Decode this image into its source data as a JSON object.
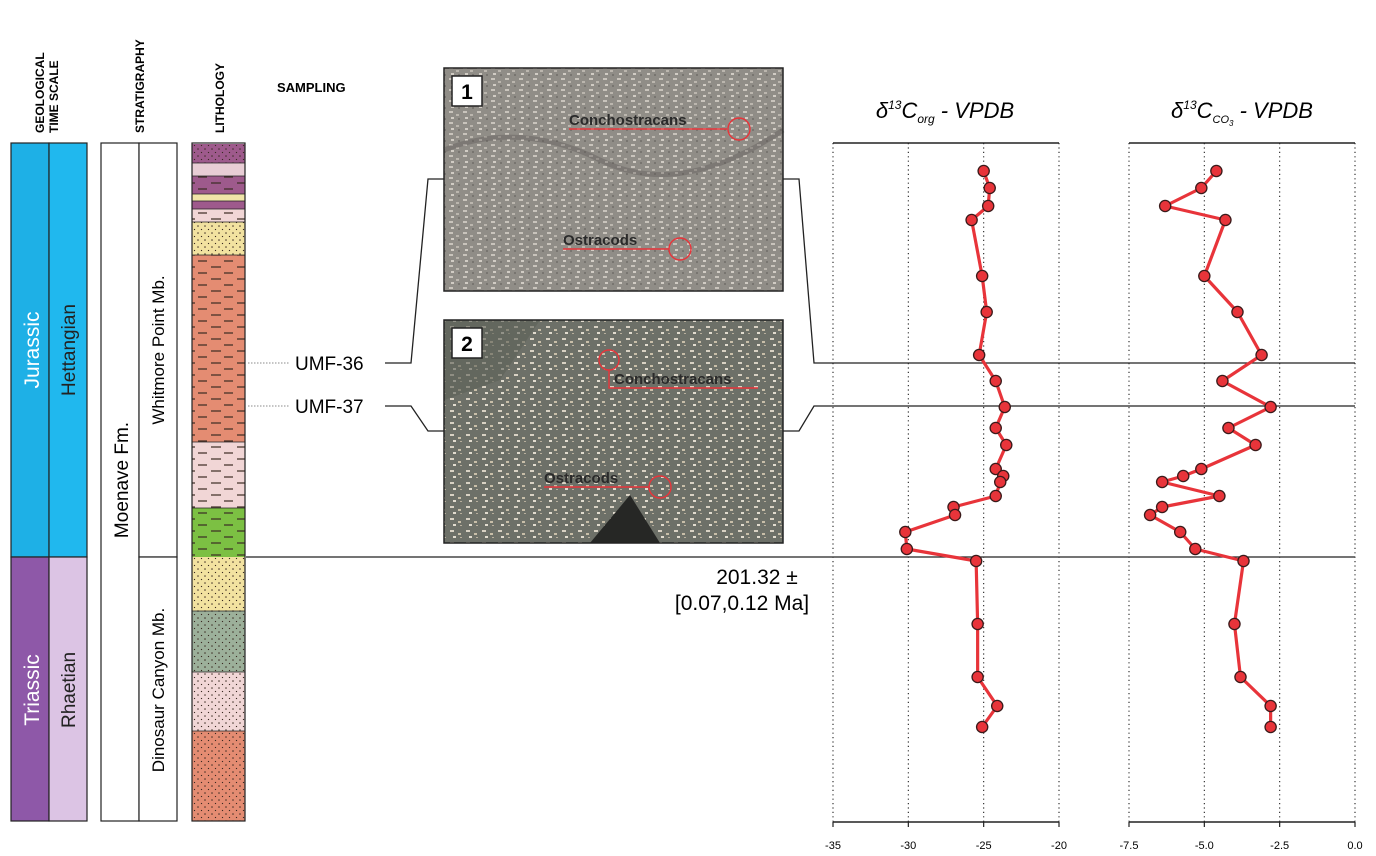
{
  "headers": {
    "geo_time_line1": "GEOLOGICAL",
    "geo_time_line2": "TIME SCALE",
    "stratigraphy": "STRATIGRAPHY",
    "lithology": "LITHOLOGY",
    "sampling": "SAMPLING"
  },
  "time_scale": {
    "upper_period": "Jurassic",
    "upper_stage": "Hettangian",
    "lower_period": "Triassic",
    "lower_stage": "Rhaetian",
    "colors": {
      "jurassic": "#1EB0E6",
      "hettangian": "#20B8EE",
      "triassic": "#8E58A8",
      "rhaetian": "#DCC4E4"
    }
  },
  "stratigraphy": {
    "formation": "Moenave Fm.",
    "upper_member": "Whitmore Point Mb.",
    "lower_member": "Dinosaur Canyon Mb."
  },
  "samples": [
    {
      "label": "UMF-36"
    },
    {
      "label": "UMF-37"
    }
  ],
  "photos": [
    {
      "number": "1",
      "labels": [
        "Conchostracans",
        "Ostracods"
      ]
    },
    {
      "number": "2",
      "labels": [
        "Conchostracans",
        "Ostracods"
      ]
    }
  ],
  "boundary_age": {
    "line1": "201.32 ±",
    "line2": "[0.07,0.12 Ma]"
  },
  "marker_color": "#E8343A",
  "line_color": "#E8343A",
  "chart_data": [
    {
      "type": "line",
      "title": "δ13Corg - VPDB",
      "title_base": "δ",
      "title_sup": "13",
      "title_main": "C",
      "title_sub": "org",
      "title_tail": " - VPDB",
      "xlim": [
        -35,
        -20
      ],
      "x_ticks": [
        "-35",
        "-30",
        "-25",
        "-20"
      ],
      "tick_values": [
        -35,
        -30,
        -25,
        -20
      ],
      "grid": true,
      "series": [
        {
          "values": [
            -25.0,
            -24.6,
            -24.7,
            -25.8,
            -25.1,
            -24.8,
            -25.3,
            -24.2,
            -23.6,
            -24.2,
            -23.5,
            -24.2,
            -23.7,
            -23.9,
            -24.2,
            -27.0,
            -26.9,
            -30.2,
            -30.1,
            -25.5,
            -25.4,
            -25.4,
            -24.1,
            -25.1
          ]
        }
      ]
    },
    {
      "type": "line",
      "title": "δ13CCO3 - VPDB",
      "title_base": "δ",
      "title_sup": "13",
      "title_main": "C",
      "title_sub": "CO",
      "title_subsub": "3",
      "title_tail": " - VPDB",
      "xlim": [
        -7.5,
        0.0
      ],
      "x_ticks": [
        "-7.5",
        "-5.0",
        "-2.5",
        "0.0"
      ],
      "tick_values": [
        -7.5,
        -5.0,
        -2.5,
        0.0
      ],
      "grid": true,
      "series": [
        {
          "values": [
            -4.6,
            -5.1,
            -6.3,
            -4.3,
            -5.0,
            -3.9,
            -3.1,
            -4.4,
            -2.8,
            -4.2,
            -3.3,
            -5.1,
            -5.7,
            -6.4,
            -4.5,
            -6.4,
            -6.8,
            -5.8,
            -5.3,
            -3.7,
            -4.0,
            -3.8,
            -2.8,
            -2.8
          ]
        }
      ]
    }
  ]
}
